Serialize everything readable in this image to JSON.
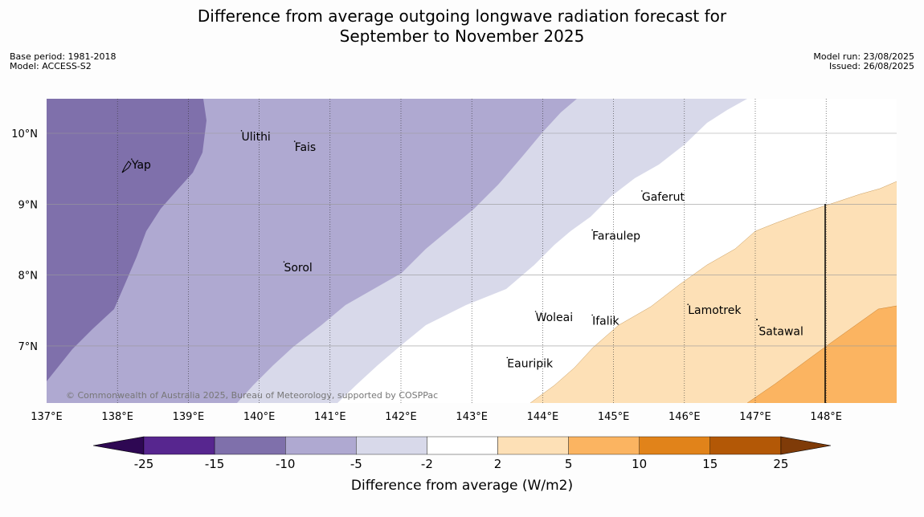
{
  "title_line1": "Difference from average outgoing longwave radiation forecast for",
  "title_line2": "September to November 2025",
  "base_period": "Base period: 1981-2018",
  "model": "Model: ACCESS-S2",
  "model_run": "Model run: 23/08/2025",
  "issued": "Issued: 26/08/2025",
  "copyright": "© Commonwealth of Australia 2025, Bureau of Meteorology, supported by COSPPac",
  "lon_ticks": [
    "137°E",
    "138°E",
    "139°E",
    "140°E",
    "141°E",
    "142°E",
    "143°E",
    "144°E",
    "145°E",
    "146°E",
    "147°E",
    "148°E"
  ],
  "lat_ticks": [
    "10°N",
    "9°N",
    "8°N",
    "7°N"
  ],
  "places": [
    {
      "name": "Yap",
      "lon": 138.2,
      "lat": 9.5
    },
    {
      "name": "Ulithi",
      "lon": 139.75,
      "lat": 9.9
    },
    {
      "name": "Fais",
      "lon": 140.5,
      "lat": 9.75
    },
    {
      "name": "Gaferut",
      "lon": 145.4,
      "lat": 9.05
    },
    {
      "name": "Faraulep",
      "lon": 144.7,
      "lat": 8.5
    },
    {
      "name": "Sorol",
      "lon": 140.35,
      "lat": 8.05
    },
    {
      "name": "Woleai",
      "lon": 143.9,
      "lat": 7.35
    },
    {
      "name": "Ifalik",
      "lon": 144.7,
      "lat": 7.3
    },
    {
      "name": "Lamotrek",
      "lon": 146.05,
      "lat": 7.45
    },
    {
      "name": "Satawal",
      "lon": 147.05,
      "lat": 7.15
    },
    {
      "name": "Eauripik",
      "lon": 143.5,
      "lat": 6.7
    }
  ],
  "colorbar": {
    "label": "Difference from average (W/m2)",
    "ticks": [
      "-25",
      "-15",
      "-10",
      "-5",
      "-2",
      "2",
      "5",
      "10",
      "15",
      "25"
    ],
    "colors": [
      "#57268f",
      "#7f70ab",
      "#afa9d1",
      "#d8d9ea",
      "#ffffff",
      "#fde0b6",
      "#fbb461",
      "#e1831a",
      "#b35806"
    ],
    "extend_low_color": "#2e0853",
    "extend_high_color": "#7f3b08"
  }
}
